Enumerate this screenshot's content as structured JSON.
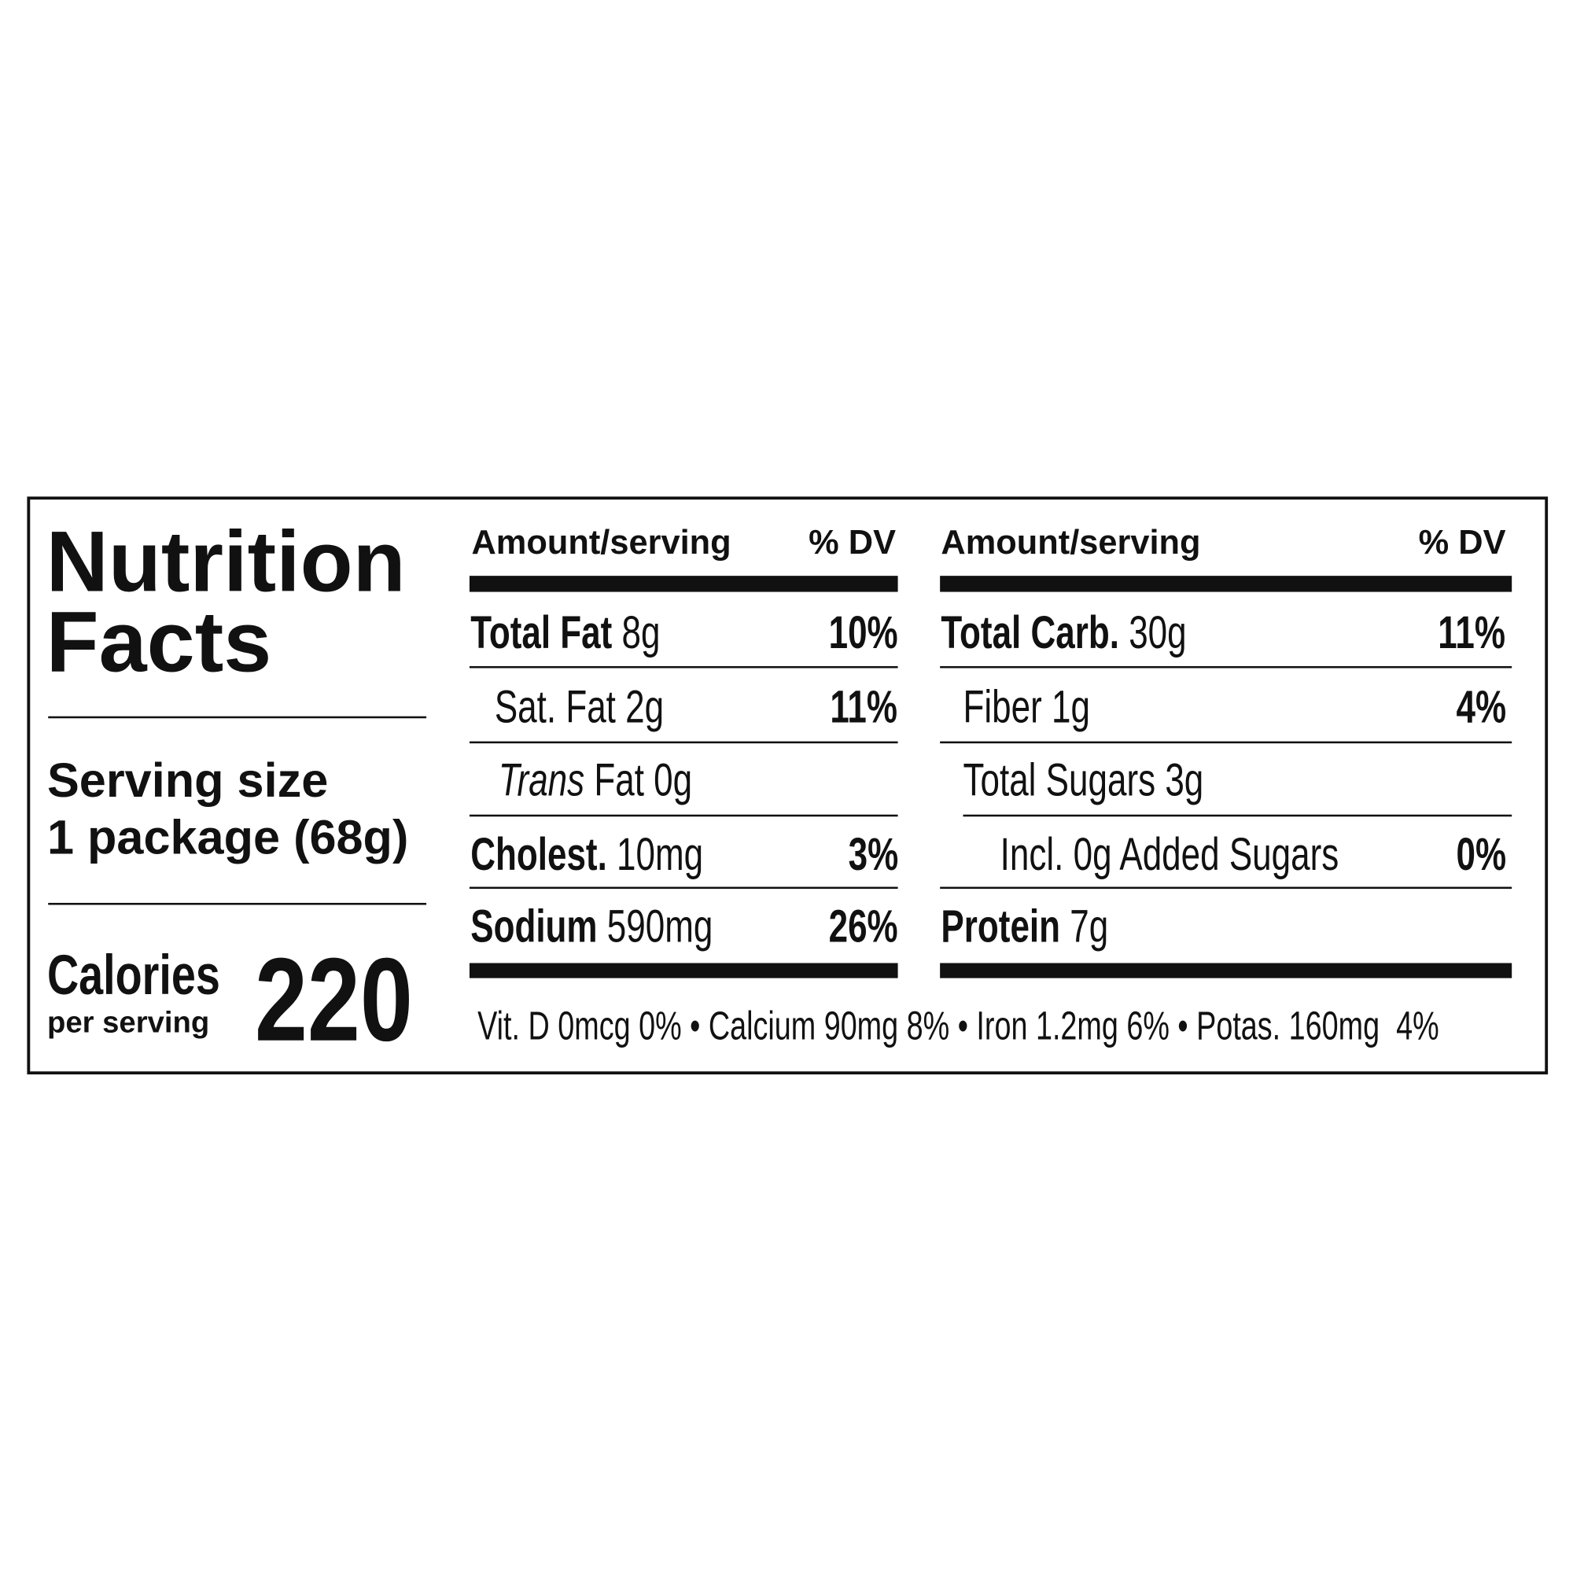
{
  "label": {
    "title": "Nutrition Facts",
    "serving_size": {
      "label": "Serving size",
      "value": "1 package (68g)"
    },
    "calories": {
      "label": "Calories",
      "sublabel": "per serving",
      "value": "220"
    },
    "columns": [
      {
        "header_amount": "Amount/serving",
        "header_dv": "% DV",
        "rows": [
          {
            "name": "Total Fat",
            "amount": "8g",
            "dv": "10%"
          },
          {
            "name": "Sat. Fat 2g",
            "dv": "11%"
          },
          {
            "name_italic": "Trans",
            "name": "Fat 0g"
          },
          {
            "name": "Cholest.",
            "amount": "10mg",
            "dv": "3%"
          },
          {
            "name": "Sodium",
            "amount": "590mg",
            "dv": "26%"
          }
        ]
      },
      {
        "header_amount": "Amount/serving",
        "header_dv": "% DV",
        "rows": [
          {
            "name": "Total Carb.",
            "amount": "30g",
            "dv": "11%"
          },
          {
            "name": "Fiber 1g",
            "dv": "4%"
          },
          {
            "name": "Total Sugars 3g"
          },
          {
            "name": "Incl. 0g Added Sugars",
            "dv": "0%"
          },
          {
            "name": "Protein",
            "amount": "7g"
          }
        ]
      }
    ],
    "footer": [
      "Vit. D 0mcg 0%",
      "Calcium 90mg 8%",
      "Iron 1.2mg 6%",
      "Potas. 160mg  4%"
    ]
  }
}
